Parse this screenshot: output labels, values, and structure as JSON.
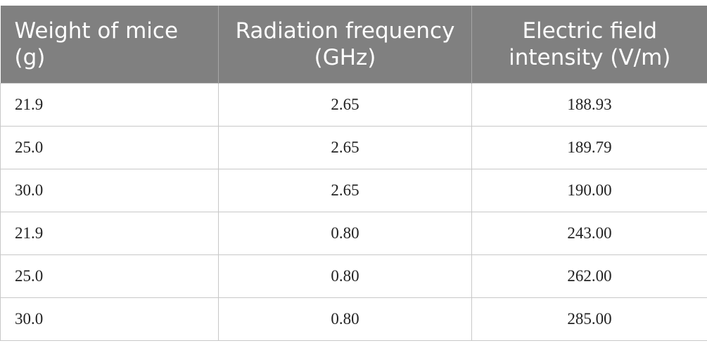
{
  "table": {
    "headers": [
      "Weight of mice (g)",
      "Radiation frequency (GHz)",
      "Electric field intensity (V/m)"
    ],
    "rows": [
      [
        "21.9",
        "2.65",
        "188.93"
      ],
      [
        "25.0",
        "2.65",
        "189.79"
      ],
      [
        "30.0",
        "2.65",
        "190.00"
      ],
      [
        "21.9",
        "0.80",
        "243.00"
      ],
      [
        "25.0",
        "0.80",
        "262.00"
      ],
      [
        "30.0",
        "0.80",
        "285.00"
      ]
    ]
  },
  "colors": {
    "header_bg": "#808080",
    "header_text": "#ffffff",
    "border": "#c8c8c8",
    "cell_text": "#222222"
  }
}
